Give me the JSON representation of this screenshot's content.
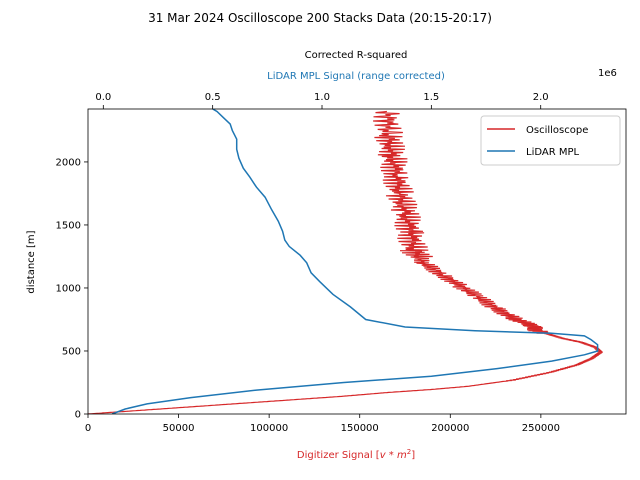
{
  "chart_data": {
    "type": "line",
    "title": "31 Mar 2024 Oscilloscope 200 Stacks Data (20:15-20:17)",
    "xlabel": "Digitizer Signal [v * m²]",
    "ylabel": "distance [m]",
    "top_xlabel": "Corrected R-squared",
    "top_xlabel2": "LiDAR MPL Signal (range corrected)",
    "top_multiplier": "1e6",
    "xlim": [
      0,
      297000
    ],
    "ylim": [
      0,
      2420
    ],
    "top_xlim": [
      -0.07,
      2.39
    ],
    "x_ticks": [
      "0",
      "50000",
      "100000",
      "150000",
      "200000",
      "250000"
    ],
    "x_tick_values": [
      0,
      50000,
      100000,
      150000,
      200000,
      250000
    ],
    "y_ticks": [
      "0",
      "500",
      "1000",
      "1500",
      "2000"
    ],
    "y_tick_values": [
      0,
      500,
      1000,
      1500,
      2000
    ],
    "top_ticks": [
      "0.0",
      "0.5",
      "1.0",
      "1.5",
      "2.0"
    ],
    "top_tick_values": [
      0.0,
      0.5,
      1.0,
      1.5,
      2.0
    ],
    "legend_position": "top-right",
    "colors": {
      "oscilloscope": "#d62728",
      "lidar": "#1f77b4"
    },
    "series": [
      {
        "name": "Oscilloscope",
        "axis": "bottom",
        "noise_band": [
          [
            640,
            0
          ],
          [
            1240,
            0
          ],
          [
            2420,
            0
          ]
        ],
        "points": [
          [
            0,
            0
          ],
          [
            20000,
            20
          ],
          [
            50000,
            50
          ],
          [
            80000,
            80
          ],
          [
            110000,
            110
          ],
          [
            140000,
            140
          ],
          [
            165000,
            170
          ],
          [
            190000,
            195
          ],
          [
            210000,
            220
          ],
          [
            235000,
            270
          ],
          [
            255000,
            330
          ],
          [
            270000,
            390
          ],
          [
            278000,
            440
          ],
          [
            283000,
            490
          ],
          [
            280000,
            530
          ],
          [
            272000,
            570
          ],
          [
            262000,
            600
          ],
          [
            255000,
            630
          ],
          [
            248000,
            660
          ],
          [
            245000,
            700
          ],
          [
            235000,
            760
          ],
          [
            225000,
            840
          ],
          [
            215000,
            930
          ],
          [
            205000,
            1020
          ],
          [
            195000,
            1110
          ],
          [
            185000,
            1200
          ],
          [
            180000,
            1300
          ],
          [
            178000,
            1450
          ],
          [
            175000,
            1600
          ],
          [
            172000,
            1750
          ],
          [
            170000,
            1900
          ],
          [
            168000,
            2050
          ],
          [
            166000,
            2200
          ],
          [
            165000,
            2400
          ]
        ]
      },
      {
        "name": "LiDAR MPL",
        "axis": "top",
        "points": [
          [
            0.04,
            0
          ],
          [
            0.1,
            40
          ],
          [
            0.2,
            80
          ],
          [
            0.4,
            130
          ],
          [
            0.7,
            190
          ],
          [
            1.1,
            250
          ],
          [
            1.5,
            300
          ],
          [
            1.8,
            360
          ],
          [
            2.05,
            420
          ],
          [
            2.2,
            470
          ],
          [
            2.26,
            500
          ],
          [
            2.26,
            550
          ],
          [
            2.23,
            590
          ],
          [
            2.2,
            620
          ],
          [
            2.05,
            640
          ],
          [
            1.7,
            660
          ],
          [
            1.38,
            690
          ],
          [
            1.2,
            750
          ],
          [
            1.13,
            850
          ],
          [
            1.05,
            950
          ],
          [
            0.99,
            1050
          ],
          [
            0.95,
            1120
          ],
          [
            0.94,
            1160
          ],
          [
            0.93,
            1200
          ],
          [
            0.9,
            1260
          ],
          [
            0.85,
            1330
          ],
          [
            0.83,
            1380
          ],
          [
            0.82,
            1450
          ],
          [
            0.8,
            1530
          ],
          [
            0.77,
            1620
          ],
          [
            0.74,
            1720
          ],
          [
            0.7,
            1800
          ],
          [
            0.67,
            1880
          ],
          [
            0.64,
            1950
          ],
          [
            0.62,
            2030
          ],
          [
            0.61,
            2100
          ],
          [
            0.61,
            2180
          ],
          [
            0.59,
            2250
          ],
          [
            0.58,
            2300
          ],
          [
            0.55,
            2350
          ],
          [
            0.52,
            2400
          ],
          [
            0.5,
            2420
          ]
        ]
      }
    ]
  }
}
